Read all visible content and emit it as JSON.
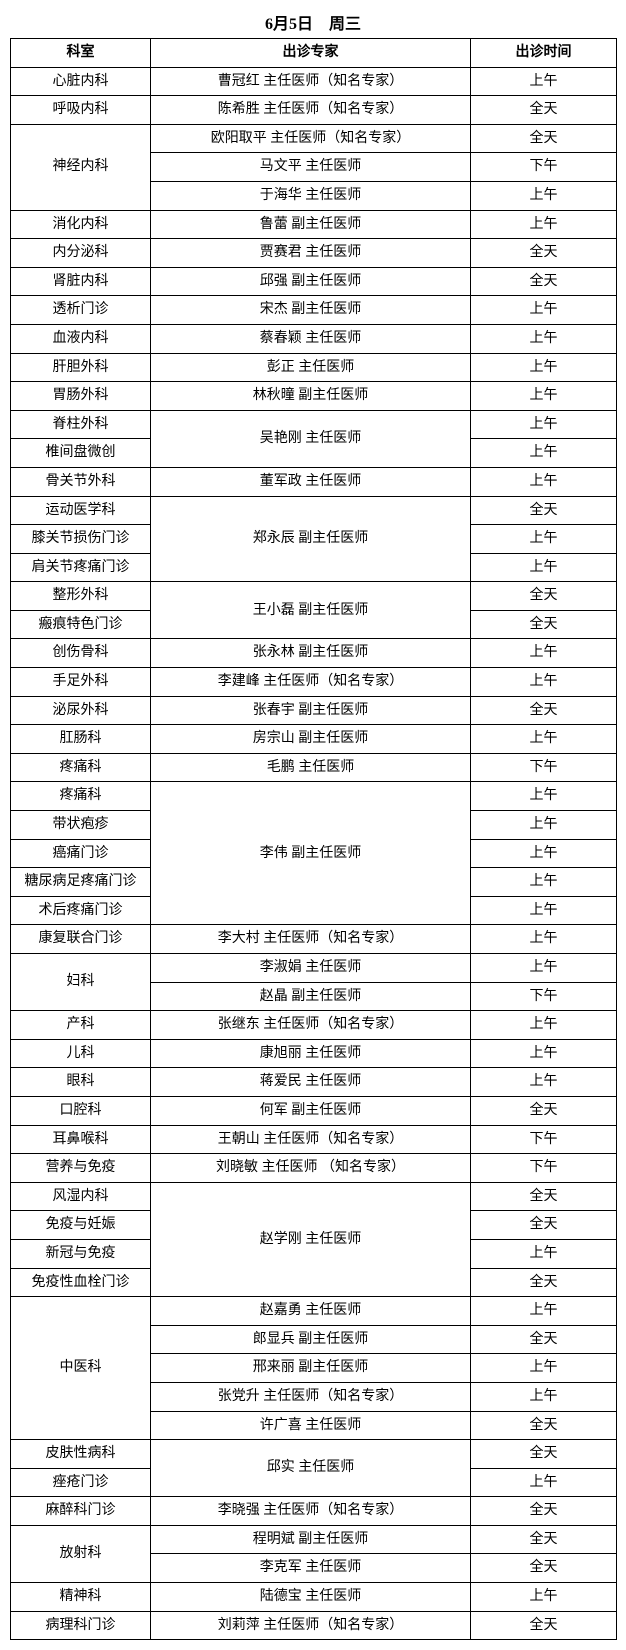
{
  "title": "6月5日　周三",
  "headers": {
    "dept": "科室",
    "expert": "出诊专家",
    "time": "出诊时间"
  },
  "rows": [
    {
      "dept": "心脏内科",
      "expert": "曹冠红  主任医师（知名专家）",
      "time": "上午"
    },
    {
      "dept": "呼吸内科",
      "expert": "陈希胜  主任医师（知名专家）",
      "time": "全天"
    },
    {
      "dept": "神经内科",
      "deptRowspan": 3,
      "expert": "欧阳取平  主任医师（知名专家）",
      "time": "全天"
    },
    {
      "expert": "马文平  主任医师",
      "time": "下午"
    },
    {
      "expert": "于海华  主任医师",
      "time": "上午"
    },
    {
      "dept": "消化内科",
      "expert": "鲁蕾  副主任医师",
      "time": "上午"
    },
    {
      "dept": "内分泌科",
      "expert": "贾赛君  主任医师",
      "time": "全天"
    },
    {
      "dept": "肾脏内科",
      "expert": "邱强  副主任医师",
      "time": "全天"
    },
    {
      "dept": "透析门诊",
      "expert": "宋杰  副主任医师",
      "time": "上午"
    },
    {
      "dept": "血液内科",
      "expert": "蔡春颖  主任医师",
      "time": "上午"
    },
    {
      "dept": "肝胆外科",
      "expert": "彭正  主任医师",
      "time": "上午"
    },
    {
      "dept": "胃肠外科",
      "expert": "林秋曈  副主任医师",
      "time": "上午"
    },
    {
      "dept": "脊柱外科",
      "expert": "吴艳刚  主任医师",
      "expertRowspan": 2,
      "time": "上午"
    },
    {
      "dept": "椎间盘微创",
      "time": "上午"
    },
    {
      "dept": "骨关节外科",
      "expert": "董军政  主任医师",
      "time": "上午"
    },
    {
      "dept": "运动医学科",
      "expert": "郑永辰  副主任医师",
      "expertRowspan": 3,
      "time": "全天"
    },
    {
      "dept": "膝关节损伤门诊",
      "time": "上午"
    },
    {
      "dept": "肩关节疼痛门诊",
      "time": "上午"
    },
    {
      "dept": "整形外科",
      "expert": "王小磊  副主任医师",
      "expertRowspan": 2,
      "time": "全天"
    },
    {
      "dept": "瘢痕特色门诊",
      "time": "全天"
    },
    {
      "dept": "创伤骨科",
      "expert": "张永林  副主任医师",
      "time": "上午"
    },
    {
      "dept": "手足外科",
      "expert": "李建峰  主任医师（知名专家）",
      "time": "上午"
    },
    {
      "dept": "泌尿外科",
      "expert": "张春宇  副主任医师",
      "time": "全天"
    },
    {
      "dept": "肛肠科",
      "expert": "房宗山  副主任医师",
      "time": "上午"
    },
    {
      "dept": "疼痛科",
      "expert": "毛鹏  主任医师",
      "time": "下午"
    },
    {
      "dept": "疼痛科",
      "expert": "李伟  副主任医师",
      "expertRowspan": 5,
      "time": "上午"
    },
    {
      "dept": "带状疱疹",
      "time": "上午"
    },
    {
      "dept": "癌痛门诊",
      "time": "上午"
    },
    {
      "dept": "糖尿病足疼痛门诊",
      "time": "上午"
    },
    {
      "dept": "术后疼痛门诊",
      "time": "上午"
    },
    {
      "dept": "康复联合门诊",
      "expert": "李大村  主任医师（知名专家）",
      "time": "上午"
    },
    {
      "dept": "妇科",
      "deptRowspan": 2,
      "expert": "李淑娟  主任医师",
      "time": "上午"
    },
    {
      "expert": "赵晶  副主任医师",
      "time": "下午"
    },
    {
      "dept": "产科",
      "expert": "张继东  主任医师（知名专家）",
      "time": "上午"
    },
    {
      "dept": "儿科",
      "expert": "康旭丽  主任医师",
      "time": "上午"
    },
    {
      "dept": "眼科",
      "expert": "蒋爱民  主任医师",
      "time": "上午"
    },
    {
      "dept": "口腔科",
      "expert": "何军  副主任医师",
      "time": "全天"
    },
    {
      "dept": "耳鼻喉科",
      "expert": "王朝山  主任医师（知名专家）",
      "time": "下午"
    },
    {
      "dept": "营养与免疫",
      "expert": "刘晓敏  主任医师  （知名专家）",
      "time": "下午"
    },
    {
      "dept": "风湿内科",
      "expert": "赵学刚  主任医师",
      "expertRowspan": 4,
      "time": "全天"
    },
    {
      "dept": "免疫与妊娠",
      "time": "全天"
    },
    {
      "dept": "新冠与免疫",
      "time": "上午"
    },
    {
      "dept": "免疫性血栓门诊",
      "time": "全天"
    },
    {
      "dept": "中医科",
      "deptRowspan": 5,
      "expert": "赵嘉勇  主任医师",
      "time": "上午"
    },
    {
      "expert": "郎显兵  副主任医师",
      "time": "全天"
    },
    {
      "expert": "邢来丽  副主任医师",
      "time": "上午"
    },
    {
      "expert": "张党升  主任医师（知名专家）",
      "time": "上午"
    },
    {
      "expert": "许广喜  主任医师",
      "time": "全天"
    },
    {
      "dept": "皮肤性病科",
      "expert": "邱实  主任医师",
      "expertRowspan": 2,
      "time": "全天"
    },
    {
      "dept": "痤疮门诊",
      "time": "上午"
    },
    {
      "dept": "麻醉科门诊",
      "expert": "李晓强  主任医师（知名专家）",
      "time": "全天"
    },
    {
      "dept": "放射科",
      "deptRowspan": 2,
      "expert": "程明斌  副主任医师",
      "time": "全天"
    },
    {
      "expert": "李克军  主任医师",
      "time": "全天"
    },
    {
      "dept": "精神科",
      "expert": "陆德宝  主任医师",
      "time": "上午"
    },
    {
      "dept": "病理科门诊",
      "expert": "刘莉萍  主任医师（知名专家）",
      "time": "全天"
    }
  ]
}
